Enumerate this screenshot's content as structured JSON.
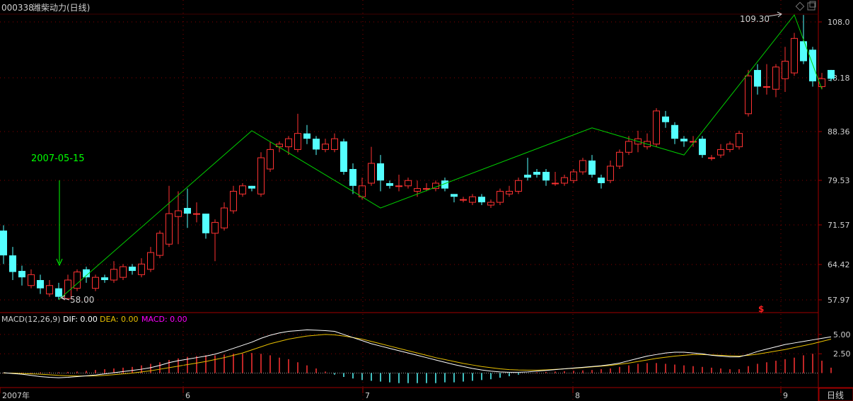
{
  "header": {
    "stock_code": "000338",
    "stock_name": "潍柴动力(日线)"
  },
  "annotations": {
    "date_label": "2007-05-15",
    "high_label": "109.30",
    "low_label": "58.00",
    "marker": "$"
  },
  "macd": {
    "label": "MACD(12,26,9)",
    "dif": "DIF: 0.00",
    "dea": "DEA: 0.00",
    "macd": "MACD: 0.00",
    "colors": {
      "dif": "#ffffff",
      "dea": "#e8c000",
      "macd": "#ff00ff"
    }
  },
  "period_button": "日线",
  "chart_data": {
    "type": "candlestick",
    "price_axis_ticks": [
      "108.0",
      "98.18",
      "88.36",
      "79.53",
      "71.57",
      "64.42",
      "57.97"
    ],
    "macd_axis_ticks": [
      "5.00",
      "2.50"
    ],
    "x_ticks": [
      "2007年",
      "6",
      "7",
      "8",
      "9"
    ],
    "colors": {
      "up": "#ff3232",
      "down": "#54ffff",
      "zigzag": "#00d000"
    },
    "candles": [
      [
        70.5,
        66.0,
        71.5,
        64.5
      ],
      [
        66.0,
        63.0,
        67.5,
        61.5
      ],
      [
        63.2,
        62.0,
        64.2,
        60.5
      ],
      [
        60.5,
        62.5,
        63.5,
        60.0
      ],
      [
        61.5,
        60.0,
        62.5,
        59.0
      ],
      [
        59.0,
        60.5,
        61.5,
        58.5
      ],
      [
        60.0,
        58.5,
        61.0,
        58.0
      ],
      [
        58.2,
        61.5,
        62.5,
        58.0
      ],
      [
        60.0,
        63.0,
        63.5,
        59.5
      ],
      [
        63.5,
        62.0,
        64.0,
        61.0
      ],
      [
        60.0,
        62.0,
        62.5,
        59.5
      ],
      [
        62.0,
        61.5,
        62.5,
        61.0
      ],
      [
        61.5,
        63.5,
        65.0,
        61.0
      ],
      [
        62.0,
        64.0,
        64.5,
        61.5
      ],
      [
        64.0,
        63.2,
        64.5,
        62.5
      ],
      [
        62.5,
        64.5,
        65.5,
        62.0
      ],
      [
        63.5,
        66.5,
        67.5,
        63.0
      ],
      [
        66.0,
        70.0,
        70.5,
        65.5
      ],
      [
        68.0,
        73.5,
        78.5,
        67.5
      ],
      [
        73.0,
        74.0,
        77.5,
        68.0
      ],
      [
        74.5,
        73.5,
        78.0,
        71.0
      ],
      [
        73.5,
        73.5,
        75.5,
        72.0
      ],
      [
        73.5,
        70.0,
        73.5,
        69.0
      ],
      [
        70.0,
        72.0,
        72.5,
        65.0
      ],
      [
        71.0,
        74.5,
        75.5,
        70.5
      ],
      [
        74.0,
        77.5,
        78.5,
        73.5
      ],
      [
        77.0,
        78.5,
        79.0,
        76.5
      ],
      [
        78.5,
        78.0,
        78.5,
        77.5
      ],
      [
        77.0,
        83.5,
        84.5,
        76.5
      ],
      [
        81.5,
        85.0,
        86.5,
        81.0
      ],
      [
        85.5,
        86.0,
        86.5,
        84.5
      ],
      [
        85.5,
        87.0,
        87.5,
        84.0
      ],
      [
        85.0,
        88.0,
        91.5,
        84.5
      ],
      [
        88.0,
        87.0,
        89.5,
        86.0
      ],
      [
        87.0,
        85.0,
        87.5,
        84.0
      ],
      [
        85.0,
        86.0,
        87.0,
        84.5
      ],
      [
        85.0,
        87.0,
        88.0,
        84.5
      ],
      [
        86.5,
        81.0,
        87.0,
        80.5
      ],
      [
        81.5,
        78.5,
        82.5,
        77.0
      ],
      [
        76.5,
        78.5,
        80.0,
        76.0
      ],
      [
        79.0,
        82.5,
        85.5,
        78.5
      ],
      [
        82.5,
        79.5,
        84.0,
        77.5
      ],
      [
        79.0,
        78.5,
        79.5,
        78.0
      ],
      [
        78.5,
        78.5,
        80.5,
        77.5
      ],
      [
        78.5,
        79.5,
        80.0,
        78.0
      ],
      [
        77.5,
        78.0,
        79.5,
        76.5
      ],
      [
        78.0,
        78.0,
        79.0,
        77.5
      ],
      [
        78.0,
        79.0,
        79.5,
        77.5
      ],
      [
        79.5,
        78.0,
        80.0,
        77.5
      ],
      [
        77.0,
        76.5,
        77.0,
        75.5
      ],
      [
        76.0,
        76.0,
        76.5,
        75.5
      ],
      [
        75.5,
        76.5,
        77.0,
        75.0
      ],
      [
        76.5,
        75.5,
        77.0,
        75.0
      ],
      [
        75.0,
        75.5,
        76.0,
        74.5
      ],
      [
        75.5,
        77.5,
        78.0,
        75.0
      ],
      [
        77.0,
        77.5,
        78.5,
        76.5
      ],
      [
        77.5,
        79.5,
        80.0,
        77.0
      ],
      [
        80.5,
        80.0,
        83.5,
        79.5
      ],
      [
        81.0,
        80.5,
        81.5,
        80.0
      ],
      [
        81.0,
        79.5,
        81.5,
        78.5
      ],
      [
        79.0,
        79.0,
        81.0,
        78.5
      ],
      [
        79.0,
        80.0,
        80.5,
        78.5
      ],
      [
        79.5,
        81.0,
        81.5,
        79.0
      ],
      [
        81.0,
        83.0,
        83.5,
        80.5
      ],
      [
        83.0,
        80.5,
        84.0,
        80.0
      ],
      [
        80.0,
        79.0,
        80.5,
        78.0
      ],
      [
        79.5,
        82.0,
        83.0,
        79.0
      ],
      [
        82.0,
        84.5,
        85.0,
        81.5
      ],
      [
        84.5,
        86.5,
        87.5,
        84.0
      ],
      [
        86.0,
        87.0,
        88.5,
        84.5
      ],
      [
        85.5,
        86.5,
        88.0,
        85.0
      ],
      [
        86.0,
        92.0,
        92.5,
        85.5
      ],
      [
        91.0,
        90.0,
        92.0,
        89.0
      ],
      [
        89.5,
        87.0,
        90.0,
        86.0
      ],
      [
        87.0,
        86.5,
        87.5,
        85.5
      ],
      [
        86.5,
        86.5,
        87.5,
        85.5
      ],
      [
        87.0,
        84.0,
        87.5,
        83.5
      ],
      [
        83.5,
        83.5,
        84.0,
        83.0
      ],
      [
        84.0,
        85.0,
        86.0,
        83.5
      ],
      [
        85.0,
        86.0,
        86.5,
        84.5
      ],
      [
        85.5,
        88.0,
        88.5,
        85.0
      ],
      [
        91.5,
        98.5,
        99.5,
        91.0
      ],
      [
        99.5,
        96.5,
        100.5,
        95.0
      ],
      [
        96.5,
        96.5,
        100.5,
        95.0
      ],
      [
        96.0,
        100.0,
        100.5,
        94.5
      ],
      [
        98.0,
        101.0,
        103.5,
        95.5
      ],
      [
        99.0,
        105.0,
        106.0,
        98.5
      ],
      [
        104.5,
        101.0,
        109.3,
        100.5
      ],
      [
        103.0,
        97.5,
        103.5,
        96.5
      ],
      [
        96.5,
        98.0,
        99.0,
        96.0
      ],
      [
        99.5,
        98.0,
        99.5,
        97.5
      ]
    ],
    "zigzag": [
      [
        6,
        58.0
      ],
      [
        27,
        88.5
      ],
      [
        41,
        74.5
      ],
      [
        64,
        89.0
      ],
      [
        74,
        84.0
      ],
      [
        86,
        109.3
      ],
      [
        89,
        96.0
      ]
    ],
    "macd_lines": {
      "dif": [
        0.05,
        -0.05,
        -0.15,
        -0.3,
        -0.45,
        -0.55,
        -0.6,
        -0.55,
        -0.45,
        -0.35,
        -0.25,
        -0.1,
        0.05,
        0.2,
        0.35,
        0.5,
        0.7,
        1.0,
        1.35,
        1.6,
        1.8,
        2.0,
        2.2,
        2.45,
        2.8,
        3.2,
        3.6,
        4.0,
        4.5,
        4.9,
        5.2,
        5.4,
        5.5,
        5.6,
        5.55,
        5.5,
        5.4,
        5.0,
        4.6,
        4.2,
        3.8,
        3.5,
        3.2,
        2.9,
        2.6,
        2.3,
        2.0,
        1.7,
        1.4,
        1.1,
        0.85,
        0.6,
        0.4,
        0.25,
        0.15,
        0.1,
        0.1,
        0.15,
        0.25,
        0.35,
        0.45,
        0.55,
        0.65,
        0.75,
        0.85,
        0.95,
        1.1,
        1.3,
        1.6,
        1.9,
        2.2,
        2.4,
        2.6,
        2.7,
        2.7,
        2.6,
        2.5,
        2.3,
        2.2,
        2.1,
        2.1,
        2.4,
        2.8,
        3.1,
        3.4,
        3.7,
        3.9,
        4.1,
        4.3,
        4.5,
        4.7
      ],
      "dea": [
        0.0,
        0.0,
        -0.05,
        -0.1,
        -0.15,
        -0.22,
        -0.3,
        -0.35,
        -0.38,
        -0.38,
        -0.36,
        -0.3,
        -0.2,
        -0.1,
        0.0,
        0.15,
        0.3,
        0.5,
        0.7,
        0.9,
        1.1,
        1.3,
        1.5,
        1.75,
        2.0,
        2.3,
        2.6,
        3.0,
        3.4,
        3.8,
        4.1,
        4.4,
        4.6,
        4.8,
        4.9,
        5.0,
        4.95,
        4.8,
        4.6,
        4.4,
        4.1,
        3.8,
        3.5,
        3.2,
        2.9,
        2.6,
        2.3,
        2.0,
        1.75,
        1.5,
        1.25,
        1.05,
        0.85,
        0.7,
        0.55,
        0.45,
        0.4,
        0.38,
        0.38,
        0.42,
        0.48,
        0.55,
        0.62,
        0.7,
        0.8,
        0.9,
        1.0,
        1.15,
        1.3,
        1.5,
        1.7,
        1.9,
        2.05,
        2.2,
        2.3,
        2.4,
        2.4,
        2.35,
        2.3,
        2.25,
        2.2,
        2.3,
        2.45,
        2.65,
        2.85,
        3.05,
        3.3,
        3.55,
        3.8,
        4.1,
        4.4
      ],
      "hist": [
        0.05,
        0.05,
        0.05,
        0.05,
        0.1,
        0.1,
        0.1,
        0.15,
        0.2,
        0.3,
        0.4,
        0.5,
        0.6,
        0.7,
        0.8,
        1.0,
        1.2,
        1.4,
        1.7,
        1.9,
        2.1,
        2.2,
        2.3,
        2.3,
        2.4,
        2.5,
        2.5,
        2.6,
        2.5,
        2.3,
        2.0,
        1.8,
        1.4,
        1.0,
        0.6,
        0.2,
        -0.2,
        -0.5,
        -0.7,
        -0.9,
        -1.0,
        -1.1,
        -1.2,
        -1.3,
        -1.3,
        -1.3,
        -1.3,
        -1.3,
        -1.2,
        -1.2,
        -1.1,
        -1.0,
        -0.9,
        -0.8,
        -0.6,
        -0.4,
        -0.2,
        0.0,
        0.1,
        0.15,
        0.2,
        0.25,
        0.3,
        0.35,
        0.4,
        0.5,
        0.6,
        0.8,
        1.0,
        1.2,
        1.3,
        1.3,
        1.2,
        1.1,
        1.0,
        0.9,
        0.8,
        0.7,
        0.6,
        0.5,
        0.5,
        0.9,
        1.2,
        1.4,
        1.6,
        1.8,
        2.0,
        2.3,
        2.5,
        1.6,
        0.7
      ],
      "ylim": [
        -1.6,
        6.0
      ]
    }
  }
}
